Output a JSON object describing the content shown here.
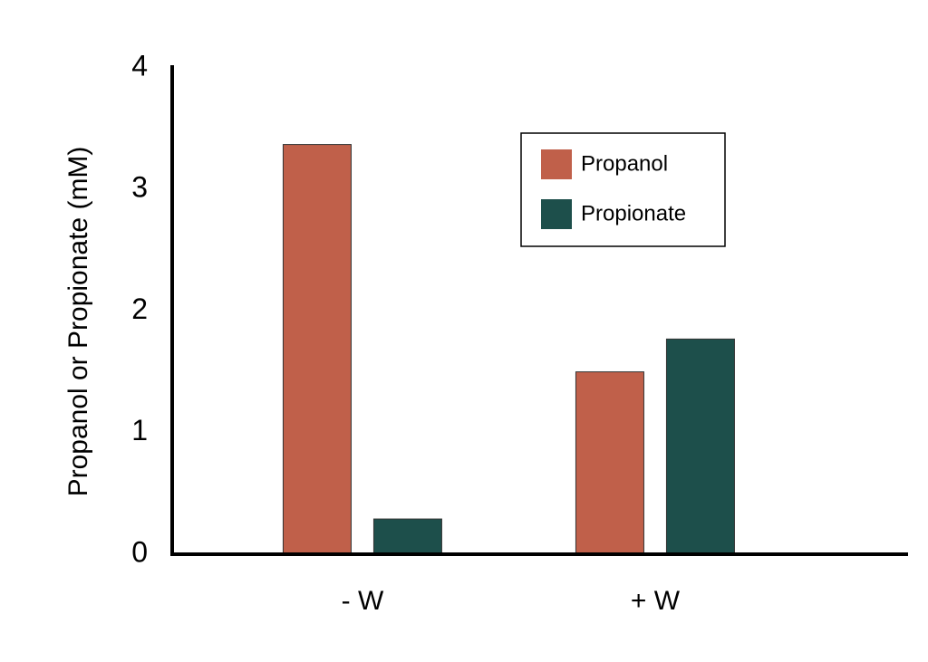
{
  "chart_data": {
    "type": "bar",
    "y_axis_label": "Propanol or Propionate (mM)",
    "categories": [
      "- W",
      "+ W"
    ],
    "series": [
      {
        "name": "Propanol",
        "color": "#c0604a",
        "values": [
          3.37,
          1.5
        ]
      },
      {
        "name": "Propionate",
        "color": "#1d4f4b",
        "values": [
          0.29,
          1.77
        ]
      }
    ],
    "ylim": [
      0,
      4
    ],
    "yticks": [
      0,
      1,
      2,
      3,
      4
    ],
    "grid": false,
    "legend": "upper right"
  }
}
